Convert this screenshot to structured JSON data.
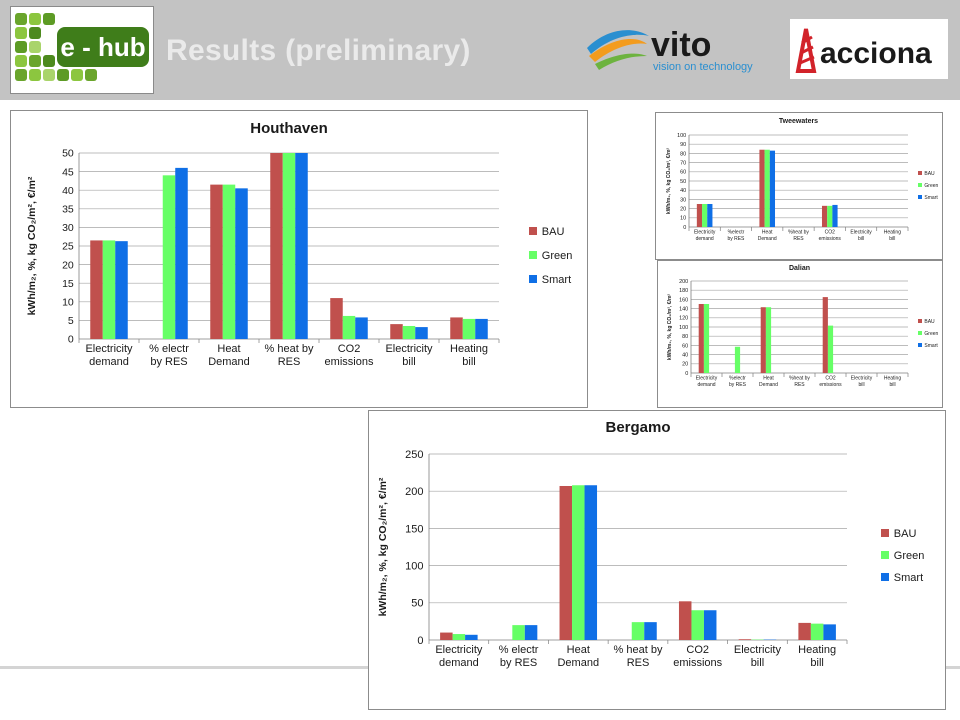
{
  "header": {
    "title": "Results (preliminary)",
    "background_color": "#c3c3c3",
    "logos": {
      "ehub": "e - hub",
      "vito": "vito",
      "vito_tagline": "vision on technology",
      "acciona": "acciona"
    }
  },
  "colors": {
    "bau": "#c0504d",
    "green": "#66ff66",
    "smart": "#0f6fe6"
  },
  "chart_data": [
    {
      "id": "houthaven",
      "type": "bar",
      "title": "Houthaven",
      "ylabel": "kWh/m₂, %, kg CO₂/m², €/m²",
      "ylim": [
        0,
        50
      ],
      "yticks": [
        0,
        5,
        10,
        15,
        20,
        25,
        30,
        35,
        40,
        45,
        50
      ],
      "categories": [
        [
          "Electricity",
          "demand"
        ],
        [
          "% electr",
          "by RES"
        ],
        [
          "Heat",
          "Demand"
        ],
        [
          "% heat by",
          "RES"
        ],
        [
          "CO2",
          "emissions"
        ],
        [
          "Electricity",
          "bill"
        ],
        [
          "Heating",
          "bill"
        ]
      ],
      "series": [
        {
          "name": "BAU",
          "values": [
            26.5,
            0,
            41.5,
            50,
            11,
            4,
            5.8
          ]
        },
        {
          "name": "Green",
          "values": [
            26.5,
            44,
            41.5,
            50,
            6.2,
            3.5,
            5.4
          ]
        },
        {
          "name": "Smart",
          "values": [
            26.3,
            46,
            40.5,
            50,
            5.8,
            3.2,
            5.4
          ]
        }
      ],
      "grid": true,
      "legend": "right"
    },
    {
      "id": "tweewaters",
      "type": "bar",
      "title": "Tweewaters",
      "ylabel": "kWh/m₂, %, kg CO₂/m², €/m²",
      "ylim": [
        0,
        100
      ],
      "yticks": [
        0,
        10,
        20,
        30,
        40,
        50,
        60,
        70,
        80,
        90,
        100
      ],
      "categories": [
        [
          "Electricity",
          "demand"
        ],
        [
          "%electr",
          "by RES"
        ],
        [
          "Heat",
          "Demand"
        ],
        [
          "%heat by",
          "RES"
        ],
        [
          "CO2",
          "emissions"
        ],
        [
          "Electricity",
          "bill"
        ],
        [
          "Heating",
          "bill"
        ]
      ],
      "series": [
        {
          "name": "BAU",
          "values": [
            25,
            0,
            84,
            0,
            23,
            0,
            0
          ]
        },
        {
          "name": "Green",
          "values": [
            25,
            0,
            84,
            0,
            23,
            0,
            0
          ]
        },
        {
          "name": "Smart",
          "values": [
            25,
            0,
            83,
            0,
            24,
            0,
            0
          ]
        }
      ],
      "grid": true,
      "legend": "right"
    },
    {
      "id": "dalian",
      "type": "bar",
      "title": "Dalian",
      "ylabel": "kWh/m₂, %, kg CO₂/m², €/m²",
      "ylim": [
        0,
        200
      ],
      "yticks": [
        0,
        20,
        40,
        60,
        80,
        100,
        120,
        140,
        160,
        180,
        200
      ],
      "categories": [
        [
          "Electricity",
          "demand"
        ],
        [
          "%electr",
          "by RES"
        ],
        [
          "Heat",
          "Demand"
        ],
        [
          "%heat by",
          "RES"
        ],
        [
          "CO2",
          "emissions"
        ],
        [
          "Electricity",
          "bill"
        ],
        [
          "Heating",
          "bill"
        ]
      ],
      "series": [
        {
          "name": "BAU",
          "values": [
            150,
            0,
            143,
            0,
            165,
            0,
            0
          ]
        },
        {
          "name": "Green",
          "values": [
            150,
            57,
            143,
            0,
            103,
            0,
            0
          ]
        },
        {
          "name": "Smart",
          "values": [
            0,
            0,
            0,
            0,
            0,
            0,
            0
          ]
        }
      ],
      "grid": true,
      "legend": "right"
    },
    {
      "id": "bergamo",
      "type": "bar",
      "title": "Bergamo",
      "ylabel": "kWh/m₂, %, kg CO₂/m², €/m²",
      "ylim": [
        0,
        250
      ],
      "yticks": [
        0,
        50,
        100,
        150,
        200,
        250
      ],
      "categories": [
        [
          "Electricity",
          "demand"
        ],
        [
          "% electr",
          "by RES"
        ],
        [
          "Heat",
          "Demand"
        ],
        [
          "% heat by",
          "RES"
        ],
        [
          "CO2",
          "emissions"
        ],
        [
          "Electricity",
          "bill"
        ],
        [
          "Heating",
          "bill"
        ]
      ],
      "series": [
        {
          "name": "BAU",
          "values": [
            10,
            0,
            207,
            0,
            52,
            1,
            23
          ]
        },
        {
          "name": "Green",
          "values": [
            8,
            20,
            208,
            24,
            40,
            0.5,
            22
          ]
        },
        {
          "name": "Smart",
          "values": [
            7,
            20,
            208,
            24,
            40,
            0.5,
            21
          ]
        }
      ],
      "grid": true,
      "legend": "right"
    }
  ]
}
